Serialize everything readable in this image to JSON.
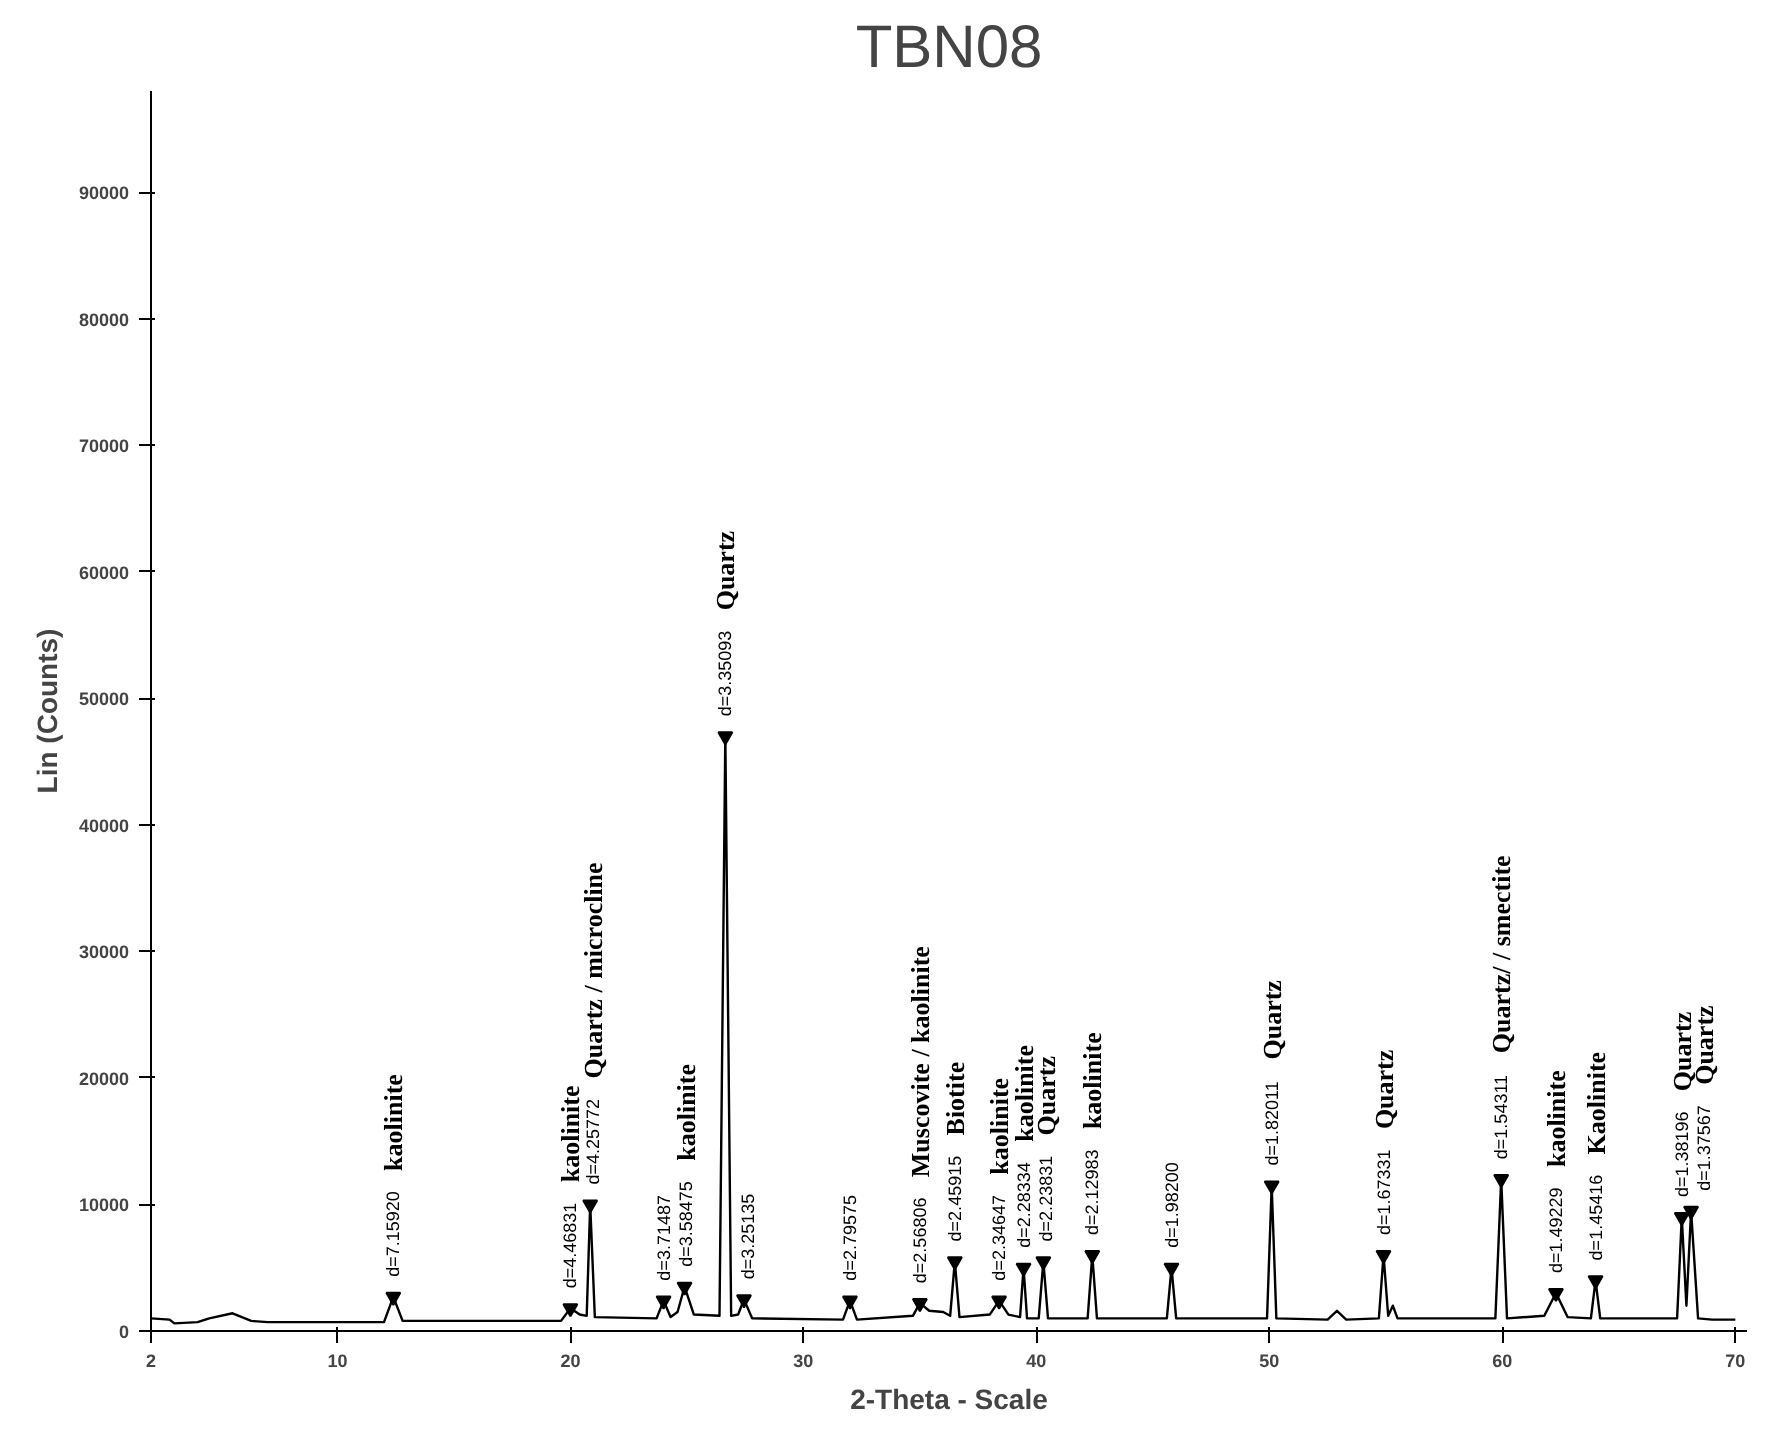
{
  "chart_data": {
    "type": "line",
    "title": "TBN08",
    "xlabel": "2-Theta - Scale",
    "ylabel": "Lin (Counts)",
    "xlim": [
      2,
      70.5
    ],
    "xticks": [
      2,
      10,
      20,
      30,
      40,
      50,
      60,
      70
    ],
    "ylim": [
      0,
      98000
    ],
    "yticks": [
      0,
      10000,
      20000,
      30000,
      40000,
      50000,
      60000,
      70000,
      80000,
      90000
    ],
    "grid": false,
    "marker": "none",
    "line_style": "solid",
    "series": [
      {
        "color": "#000000",
        "x": [
          2,
          2.8,
          3.0,
          4.0,
          4.5,
          5.5,
          6.3,
          7,
          12.0,
          12.4,
          12.8,
          19.6,
          20.0,
          20.4,
          20.7,
          20.85,
          21.05,
          23.7,
          24.0,
          24.3,
          24.6,
          24.9,
          25.3,
          26.4,
          26.65,
          26.9,
          27.2,
          27.45,
          27.8,
          31.7,
          32.0,
          32.3,
          34.7,
          35.0,
          35.4,
          36.0,
          36.3,
          36.5,
          36.7,
          38.0,
          38.4,
          38.8,
          39.3,
          39.45,
          39.6,
          40.1,
          40.3,
          40.5,
          42.2,
          42.4,
          42.6,
          45.6,
          45.8,
          46.0,
          49.9,
          50.1,
          50.3,
          52.5,
          52.9,
          53.3,
          54.7,
          54.9,
          55.1,
          55.3,
          55.5,
          59.7,
          59.95,
          60.2,
          61.8,
          62.3,
          62.8,
          63.8,
          64.0,
          64.2,
          67.5,
          67.7,
          67.9,
          68.1,
          68.4,
          69,
          70
        ],
        "values": [
          1000,
          900,
          600,
          700,
          1000,
          1400,
          800,
          700,
          700,
          2700,
          800,
          800,
          1800,
          1300,
          1200,
          10000,
          1100,
          1000,
          2400,
          1100,
          1500,
          3500,
          1300,
          1200,
          47000,
          1200,
          1300,
          2500,
          1000,
          900,
          2400,
          900,
          1200,
          2200,
          1600,
          1500,
          1200,
          5500,
          1100,
          1300,
          2400,
          1300,
          1100,
          5000,
          1000,
          1000,
          5500,
          1000,
          1000,
          6000,
          1000,
          1000,
          5000,
          1000,
          1000,
          11500,
          1000,
          900,
          1600,
          900,
          1000,
          6000,
          1200,
          2000,
          1000,
          1000,
          12000,
          1000,
          1200,
          3000,
          1100,
          1000,
          4000,
          1000,
          1000,
          9000,
          2000,
          9500,
          1000,
          900,
          900
        ]
      }
    ],
    "annotations": [
      {
        "text": "d=7.15920",
        "x": 12.4,
        "y": 2700
      },
      "kaolinite",
      {
        "text": "d=4.46831",
        "x": 20.0,
        "y": 1800
      },
      "kaolinite",
      {
        "text": "d=4.25772",
        "x": 20.85,
        "y": 10000
      },
      "Quartz / microcline",
      {
        "text": "d=3.71487",
        "x": 24.0,
        "y": 2400
      },
      {
        "text": "d=3.58475",
        "x": 24.9,
        "y": 3500
      },
      "kaolinite",
      {
        "text": "d=3.35093",
        "x": 26.65,
        "y": 47000
      },
      "Quartz",
      {
        "text": "d=3.25135",
        "x": 27.45,
        "y": 2500
      },
      {
        "text": "d=2.79575",
        "x": 32.0,
        "y": 2400
      },
      {
        "text": "d=2.56806",
        "x": 35.0,
        "y": 2200
      },
      "Muscovite / kaolinite",
      {
        "text": "d=2.45915",
        "x": 36.5,
        "y": 5500
      },
      "Biotite",
      {
        "text": "d=2.34647",
        "x": 38.4,
        "y": 2400
      },
      "kaolinite",
      {
        "text": "d=2.28334",
        "x": 39.45,
        "y": 5000
      },
      "kaolinite",
      {
        "text": "d=2.23831",
        "x": 40.3,
        "y": 5500
      },
      "Quartz",
      {
        "text": "d=2.12983",
        "x": 42.4,
        "y": 6000
      },
      "kaolinite",
      {
        "text": "d=1.98200",
        "x": 45.8,
        "y": 5000
      },
      {
        "text": "d=1.82011",
        "x": 50.1,
        "y": 11500
      },
      "Quartz",
      {
        "text": "d=1.67331",
        "x": 54.9,
        "y": 6000
      },
      "Quartz",
      {
        "text": "d=1.54311",
        "x": 59.95,
        "y": 12000
      },
      "Quartz/ / smectite",
      {
        "text": "d=1.49229",
        "x": 62.3,
        "y": 3000
      },
      "kaolinite",
      {
        "text": "d=1.45416",
        "x": 64.0,
        "y": 4000
      },
      "Kaolinite",
      {
        "text": "d=1.38196",
        "x": 67.7,
        "y": 9000
      },
      "Quartz",
      {
        "text": "d=1.37567",
        "x": 68.1,
        "y": 9500
      },
      "Quartz"
    ]
  }
}
